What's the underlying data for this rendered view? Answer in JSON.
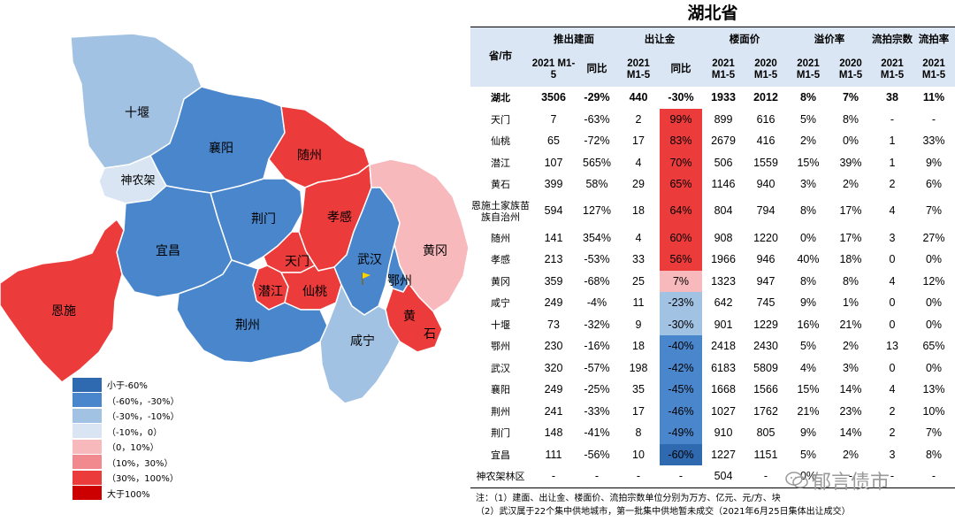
{
  "title": "湖北省",
  "colors": {
    "lt_-60": "#2f69b0",
    "-60_-30": "#4a86cc",
    "-30_-10": "#a2c2e4",
    "-10_0": "#d9e5f3",
    "0_10": "#f7b9bc",
    "10_30": "#f08a8e",
    "30_100": "#ec3b3b",
    "gt_100": "#cc0000",
    "header_bg": "#dbe6f4"
  },
  "legend": [
    {
      "label": "小于-60%",
      "key": "lt_-60"
    },
    {
      "label": "（-60%，-30%）",
      "key": "-60_-30"
    },
    {
      "label": "（-30%，-10%）",
      "key": "-30_-10"
    },
    {
      "label": "（-10%，0）",
      "key": "-10_0"
    },
    {
      "label": "（0，10%）",
      "key": "0_10"
    },
    {
      "label": "（10%，30%）",
      "key": "10_30"
    },
    {
      "label": "（30%，100%）",
      "key": "30_100"
    },
    {
      "label": "大于100%",
      "key": "gt_100"
    }
  ],
  "map_labels": {
    "shiyan": "十堰",
    "xiangyang": "襄阳",
    "suizhou": "随州",
    "shennongjia": "神农架",
    "jingmen": "荆门",
    "xiaogan": "孝感",
    "yichang": "宜昌",
    "huanggang": "黄冈",
    "tianmen": "天门",
    "wuhan": "武汉",
    "ezhou": "鄂州",
    "enshi": "恩施",
    "qianjiang": "潜江",
    "xiantao": "仙桃",
    "huangshi1": "黄",
    "huangshi2": "石",
    "jingzhou": "荆州",
    "xianning": "咸宁"
  },
  "header": {
    "region": "省/市",
    "supply": "推出建面",
    "deal": "出让金",
    "floor_price": "楼面价",
    "premium": "溢价率",
    "failed_count": "流拍宗数",
    "failed_rate": "流拍率",
    "p2021": "2021 M1-5",
    "p2020": "2020 M1-5",
    "yoy": "同比"
  },
  "chart_data": {
    "type": "table",
    "columns": [
      "省/市",
      "推出建面 2021 M1-5",
      "推出建面 同比",
      "出让金 2021 M1-5",
      "出让金 同比",
      "楼面价 2021 M1-5",
      "楼面价 2020 M1-5",
      "溢价率 2021 M1-5",
      "溢价率 2020 M1-5",
      "流拍宗数 2021 M1-5",
      "流拍率 2021 M1-5"
    ],
    "rows": [
      {
        "region": "湖北",
        "supply": "3506",
        "supply_yoy": "-29%",
        "deal": "440",
        "deal_yoy": "-30%",
        "fp2021": "1933",
        "fp2020": "2012",
        "pr2021": "8%",
        "pr2020": "7%",
        "fc": "38",
        "fr": "11%",
        "color": "",
        "total": true
      },
      {
        "region": "天门",
        "supply": "7",
        "supply_yoy": "-63%",
        "deal": "2",
        "deal_yoy": "99%",
        "fp2021": "899",
        "fp2020": "616",
        "pr2021": "5%",
        "pr2020": "8%",
        "fc": "-",
        "fr": "-",
        "color": "30_100"
      },
      {
        "region": "仙桃",
        "supply": "65",
        "supply_yoy": "-72%",
        "deal": "17",
        "deal_yoy": "83%",
        "fp2021": "2679",
        "fp2020": "416",
        "pr2021": "2%",
        "pr2020": "0%",
        "fc": "1",
        "fr": "33%",
        "color": "30_100"
      },
      {
        "region": "潜江",
        "supply": "107",
        "supply_yoy": "565%",
        "deal": "4",
        "deal_yoy": "70%",
        "fp2021": "506",
        "fp2020": "1559",
        "pr2021": "15%",
        "pr2020": "39%",
        "fc": "1",
        "fr": "9%",
        "color": "30_100"
      },
      {
        "region": "黄石",
        "supply": "399",
        "supply_yoy": "58%",
        "deal": "29",
        "deal_yoy": "65%",
        "fp2021": "1146",
        "fp2020": "940",
        "pr2021": "3%",
        "pr2020": "2%",
        "fc": "2",
        "fr": "6%",
        "color": "30_100"
      },
      {
        "region": "恩施土家族苗族自治州",
        "supply": "594",
        "supply_yoy": "127%",
        "deal": "18",
        "deal_yoy": "64%",
        "fp2021": "804",
        "fp2020": "794",
        "pr2021": "8%",
        "pr2020": "17%",
        "fc": "4",
        "fr": "7%",
        "color": "30_100",
        "tall": true
      },
      {
        "region": "随州",
        "supply": "141",
        "supply_yoy": "354%",
        "deal": "4",
        "deal_yoy": "60%",
        "fp2021": "908",
        "fp2020": "1220",
        "pr2021": "0%",
        "pr2020": "17%",
        "fc": "3",
        "fr": "27%",
        "color": "30_100"
      },
      {
        "region": "孝感",
        "supply": "213",
        "supply_yoy": "-53%",
        "deal": "33",
        "deal_yoy": "56%",
        "fp2021": "1966",
        "fp2020": "946",
        "pr2021": "40%",
        "pr2020": "18%",
        "fc": "0",
        "fr": "0%",
        "color": "30_100"
      },
      {
        "region": "黄冈",
        "supply": "359",
        "supply_yoy": "-68%",
        "deal": "25",
        "deal_yoy": "7%",
        "fp2021": "1323",
        "fp2020": "947",
        "pr2021": "8%",
        "pr2020": "8%",
        "fc": "4",
        "fr": "12%",
        "color": "0_10"
      },
      {
        "region": "咸宁",
        "supply": "249",
        "supply_yoy": "-4%",
        "deal": "11",
        "deal_yoy": "-23%",
        "fp2021": "642",
        "fp2020": "745",
        "pr2021": "9%",
        "pr2020": "1%",
        "fc": "0",
        "fr": "0%",
        "color": "-30_-10"
      },
      {
        "region": "十堰",
        "supply": "73",
        "supply_yoy": "-32%",
        "deal": "9",
        "deal_yoy": "-30%",
        "fp2021": "901",
        "fp2020": "1229",
        "pr2021": "16%",
        "pr2020": "21%",
        "fc": "0",
        "fr": "0%",
        "color": "-30_-10"
      },
      {
        "region": "鄂州",
        "supply": "230",
        "supply_yoy": "-16%",
        "deal": "18",
        "deal_yoy": "-40%",
        "fp2021": "2418",
        "fp2020": "2430",
        "pr2021": "5%",
        "pr2020": "2%",
        "fc": "13",
        "fr": "65%",
        "color": "-60_-30"
      },
      {
        "region": "武汉",
        "supply": "320",
        "supply_yoy": "-57%",
        "deal": "198",
        "deal_yoy": "-42%",
        "fp2021": "6183",
        "fp2020": "5809",
        "pr2021": "4%",
        "pr2020": "3%",
        "fc": "0",
        "fr": "0%",
        "color": "-60_-30"
      },
      {
        "region": "襄阳",
        "supply": "249",
        "supply_yoy": "-25%",
        "deal": "35",
        "deal_yoy": "-45%",
        "fp2021": "1668",
        "fp2020": "1566",
        "pr2021": "15%",
        "pr2020": "14%",
        "fc": "4",
        "fr": "13%",
        "color": "-60_-30"
      },
      {
        "region": "荆州",
        "supply": "241",
        "supply_yoy": "-33%",
        "deal": "17",
        "deal_yoy": "-46%",
        "fp2021": "1027",
        "fp2020": "1762",
        "pr2021": "21%",
        "pr2020": "23%",
        "fc": "2",
        "fr": "10%",
        "color": "-60_-30"
      },
      {
        "region": "荆门",
        "supply": "148",
        "supply_yoy": "-41%",
        "deal": "8",
        "deal_yoy": "-49%",
        "fp2021": "910",
        "fp2020": "805",
        "pr2021": "9%",
        "pr2020": "14%",
        "fc": "2",
        "fr": "7%",
        "color": "-60_-30"
      },
      {
        "region": "宜昌",
        "supply": "111",
        "supply_yoy": "-56%",
        "deal": "10",
        "deal_yoy": "-60%",
        "fp2021": "1227",
        "fp2020": "1151",
        "pr2021": "5%",
        "pr2020": "2%",
        "fc": "3",
        "fr": "8%",
        "color": "lt_-60"
      },
      {
        "region": "神农架林区",
        "supply": "-",
        "supply_yoy": "-",
        "deal": "-",
        "deal_yoy": "-",
        "fp2021": "504",
        "fp2020": "-",
        "pr2021": "0%",
        "pr2020": "-",
        "fc": "-",
        "fr": "-",
        "color": ""
      }
    ]
  },
  "notes": [
    "注：（1）建面、出让金、楼面价、流拍宗数单位分别为万方、亿元、元/方、块",
    "（2）武汉属于22个集中供地城市，第一批集中供地暂未成交（2021年6月25日集体出让成交）"
  ],
  "watermark": "郁言债市"
}
